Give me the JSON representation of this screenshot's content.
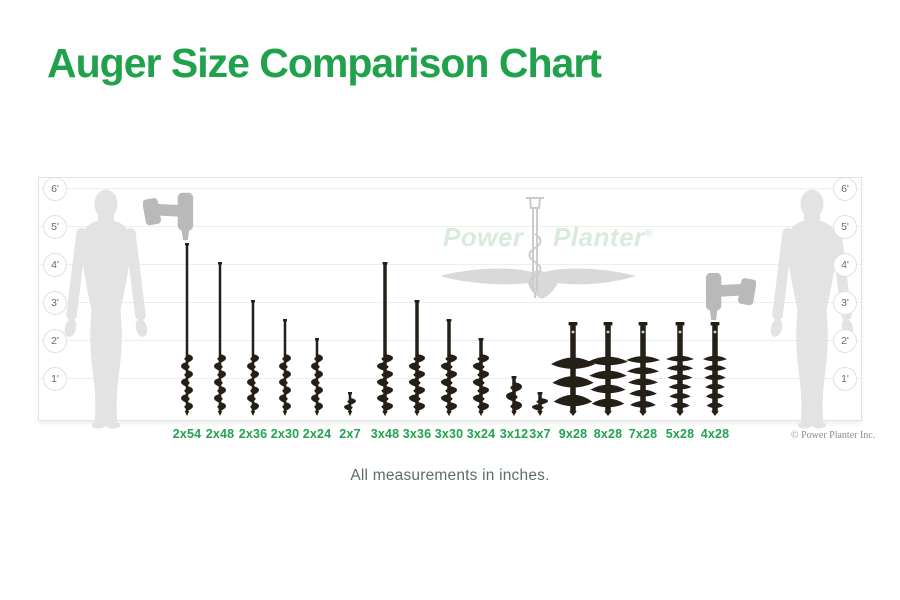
{
  "page": {
    "title": "Auger Size Comparison Chart",
    "caption": "All measurements in inches.",
    "copyright": "© Power Planter Inc."
  },
  "watermark": {
    "word_left": "Power",
    "word_right": "Planter",
    "registered_mark": "®"
  },
  "colors": {
    "title_green": "#1fa24b",
    "label_green": "#21a351",
    "caption_gray_green": "#5e6e63",
    "auger_dark": "#241f17",
    "human_silhouette_gray": "#e3e3e3",
    "drill_silhouette_gray": "#b9b9b9",
    "gridline_gray": "#eeeeec",
    "watermark_green": "#d7ecdc"
  },
  "chart_data": {
    "type": "pictorial-comparison",
    "title": "Auger Size Comparison Chart",
    "units": "inches",
    "note": "All measurements in inches.",
    "y_axis": {
      "tick_labels": [
        "6'",
        "5'",
        "4'",
        "3'",
        "2'",
        "1'"
      ],
      "tick_feet": [
        6,
        5,
        4,
        3,
        2,
        1
      ],
      "range_feet": [
        0,
        6
      ],
      "grid": true,
      "tick_sides": [
        "left",
        "right"
      ]
    },
    "items": [
      {
        "label": "2x54",
        "diameter_in": 2,
        "length_in": 54
      },
      {
        "label": "2x48",
        "diameter_in": 2,
        "length_in": 48
      },
      {
        "label": "2x36",
        "diameter_in": 2,
        "length_in": 36
      },
      {
        "label": "2x30",
        "diameter_in": 2,
        "length_in": 30
      },
      {
        "label": "2x24",
        "diameter_in": 2,
        "length_in": 24
      },
      {
        "label": "2x7",
        "diameter_in": 2,
        "length_in": 7
      },
      {
        "label": "3x48",
        "diameter_in": 3,
        "length_in": 48
      },
      {
        "label": "3x36",
        "diameter_in": 3,
        "length_in": 36
      },
      {
        "label": "3x30",
        "diameter_in": 3,
        "length_in": 30
      },
      {
        "label": "3x24",
        "diameter_in": 3,
        "length_in": 24
      },
      {
        "label": "3x12",
        "diameter_in": 3,
        "length_in": 12
      },
      {
        "label": "3x7",
        "diameter_in": 3,
        "length_in": 7
      },
      {
        "label": "9x28",
        "diameter_in": 9,
        "length_in": 28
      },
      {
        "label": "8x28",
        "diameter_in": 8,
        "length_in": 28
      },
      {
        "label": "7x28",
        "diameter_in": 7,
        "length_in": 28
      },
      {
        "label": "5x28",
        "diameter_in": 5,
        "length_in": 28
      },
      {
        "label": "4x28",
        "diameter_in": 4,
        "length_in": 28
      }
    ],
    "reference_figures": [
      "human-silhouette-left",
      "human-silhouette-right",
      "drill-silhouette-left",
      "drill-silhouette-right"
    ]
  }
}
